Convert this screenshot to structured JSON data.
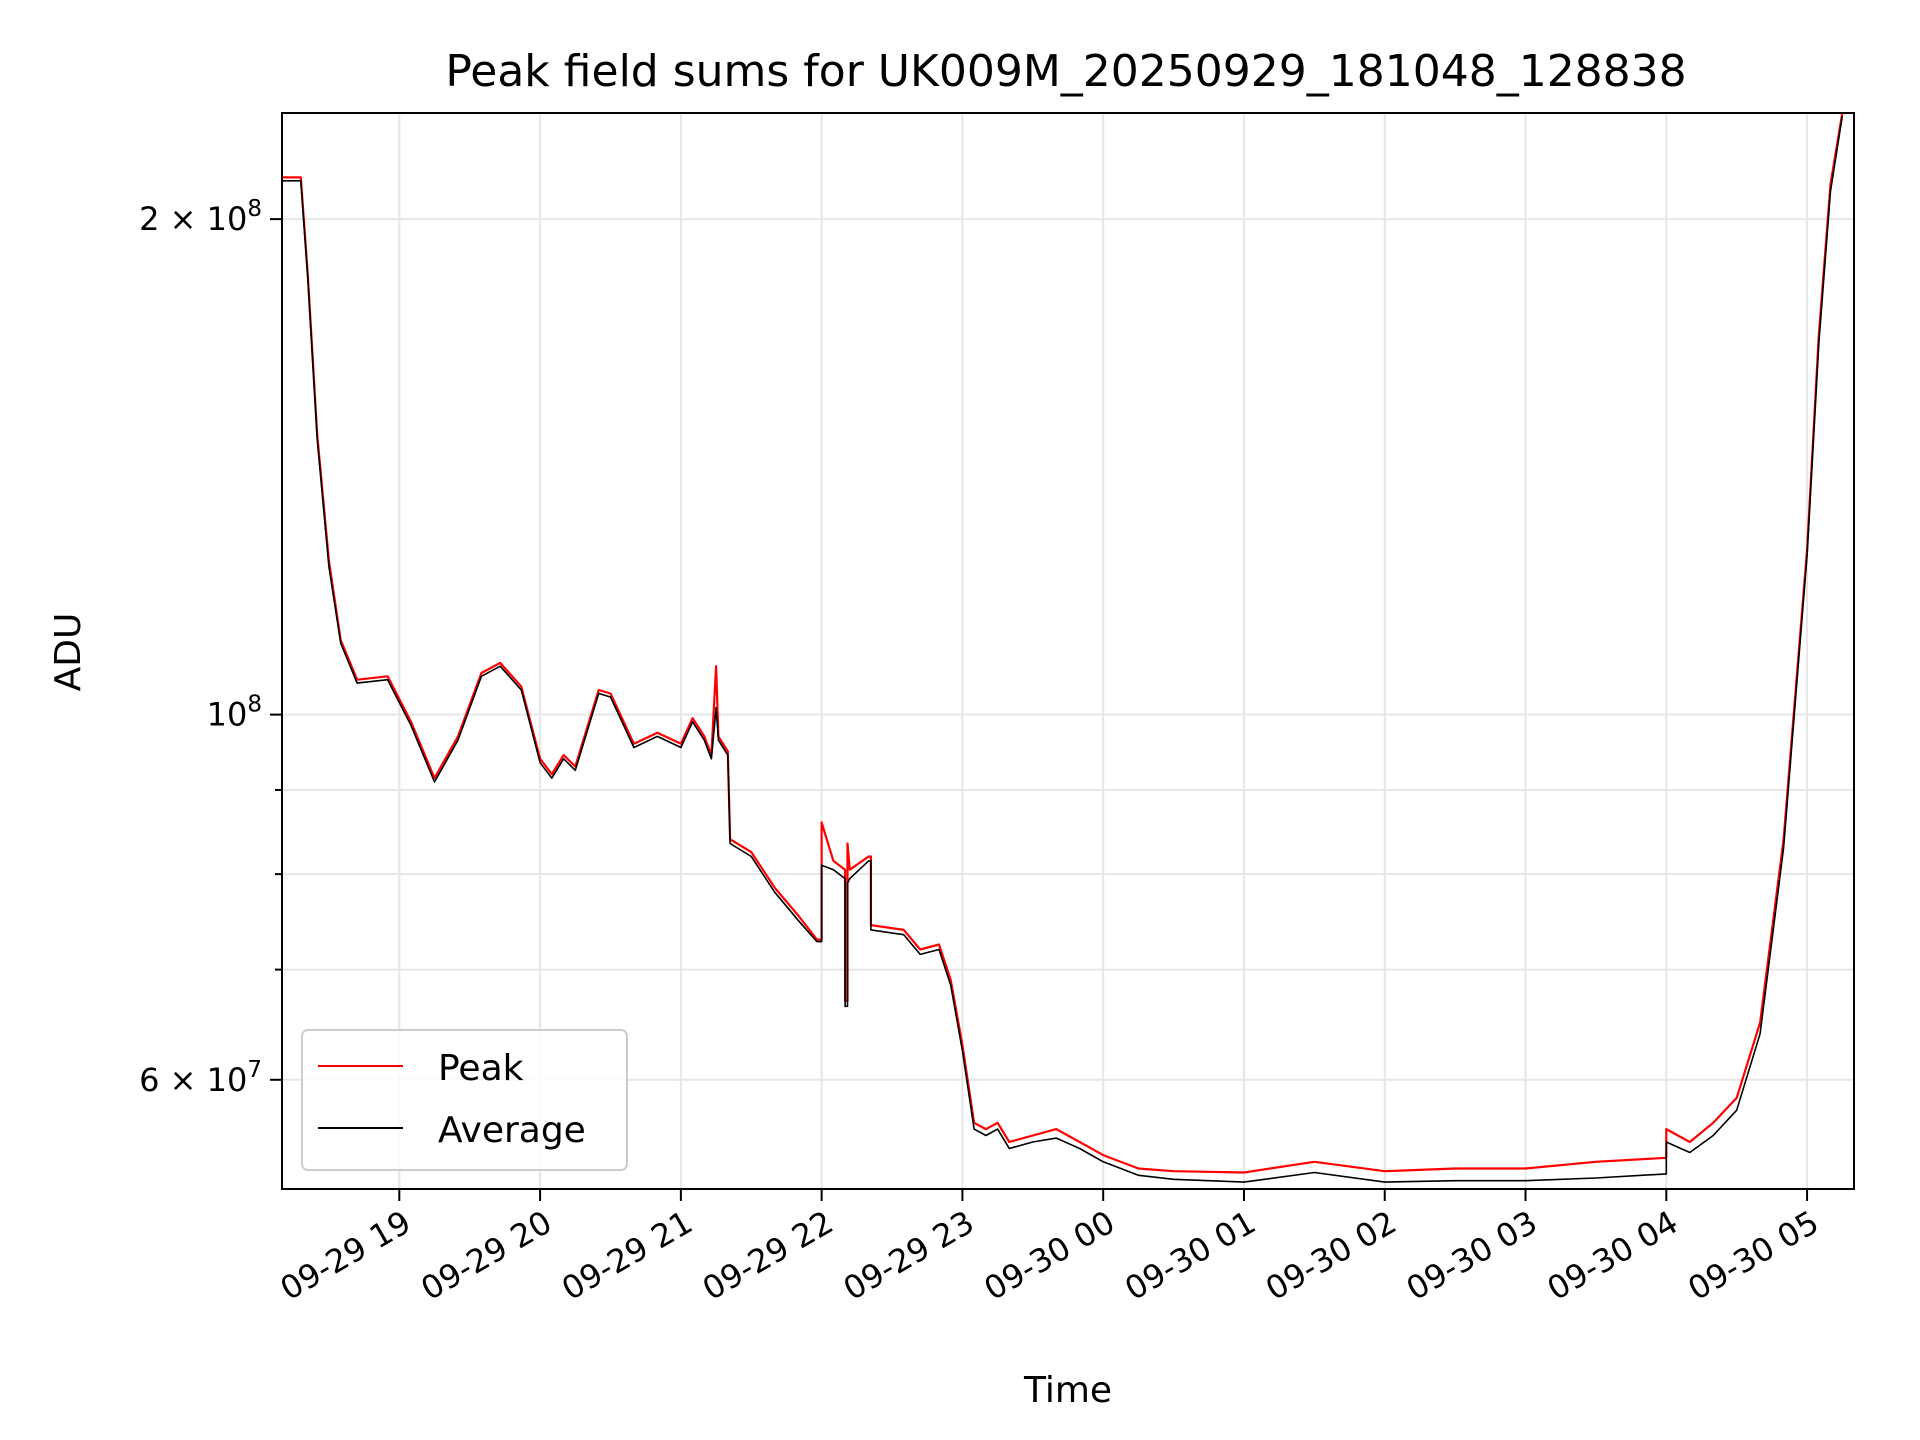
{
  "chart_data": {
    "type": "line",
    "title": "Peak field sums for UK009M_20250929_181048_128838",
    "xlabel": "Time",
    "ylabel": "ADU",
    "yscale": "log",
    "ylim": [
      51500000,
      232000000
    ],
    "xlim": [
      "2025-09-29 18:10",
      "2025-09-30 05:20"
    ],
    "grid": true,
    "legend_position": "lower-left",
    "x_ticks": [
      {
        "t": "2025-09-29 19:00",
        "label": "09-29 19"
      },
      {
        "t": "2025-09-29 20:00",
        "label": "09-29 20"
      },
      {
        "t": "2025-09-29 21:00",
        "label": "09-29 21"
      },
      {
        "t": "2025-09-29 22:00",
        "label": "09-29 22"
      },
      {
        "t": "2025-09-29 23:00",
        "label": "09-29 23"
      },
      {
        "t": "2025-09-30 00:00",
        "label": "09-30 00"
      },
      {
        "t": "2025-09-30 01:00",
        "label": "09-30 01"
      },
      {
        "t": "2025-09-30 02:00",
        "label": "09-30 02"
      },
      {
        "t": "2025-09-30 03:00",
        "label": "09-30 03"
      },
      {
        "t": "2025-09-30 04:00",
        "label": "09-30 04"
      },
      {
        "t": "2025-09-30 05:00",
        "label": "09-30 05"
      }
    ],
    "y_ticks": [
      {
        "value": 200000000,
        "base": "2 × 10",
        "exp": "8"
      },
      {
        "value": 100000000,
        "base": "10",
        "exp": "8"
      },
      {
        "value": 60000000,
        "base": "6 × 10",
        "exp": "7"
      }
    ],
    "y_minor_ticks": [
      70000000,
      80000000,
      90000000
    ],
    "series": [
      {
        "name": "Peak",
        "color": "#ff0000",
        "points": [
          [
            "2025-09-29 18:10",
            212000000
          ],
          [
            "2025-09-29 18:18",
            212000000
          ],
          [
            "2025-09-29 18:21",
            185000000
          ],
          [
            "2025-09-29 18:25",
            148000000
          ],
          [
            "2025-09-29 18:30",
            124000000
          ],
          [
            "2025-09-29 18:35",
            111000000
          ],
          [
            "2025-09-29 18:42",
            105000000
          ],
          [
            "2025-09-29 18:55",
            105500000
          ],
          [
            "2025-09-29 19:05",
            99000000
          ],
          [
            "2025-09-29 19:15",
            91500000
          ],
          [
            "2025-09-29 19:25",
            97000000
          ],
          [
            "2025-09-29 19:35",
            106000000
          ],
          [
            "2025-09-29 19:43",
            107500000
          ],
          [
            "2025-09-29 19:52",
            104000000
          ],
          [
            "2025-09-29 20:00",
            94000000
          ],
          [
            "2025-09-29 20:05",
            92000000
          ],
          [
            "2025-09-29 20:10",
            94500000
          ],
          [
            "2025-09-29 20:15",
            93000000
          ],
          [
            "2025-09-29 20:25",
            103500000
          ],
          [
            "2025-09-29 20:30",
            103000000
          ],
          [
            "2025-09-29 20:40",
            96000000
          ],
          [
            "2025-09-29 20:50",
            97500000
          ],
          [
            "2025-09-29 21:00",
            96000000
          ],
          [
            "2025-09-29 21:05",
            99500000
          ],
          [
            "2025-09-29 21:10",
            97000000
          ],
          [
            "2025-09-29 21:13",
            94500000
          ],
          [
            "2025-09-29 21:15",
            107000000
          ],
          [
            "2025-09-29 21:16",
            97000000
          ],
          [
            "2025-09-29 21:20",
            95000000
          ],
          [
            "2025-09-29 21:21",
            84000000
          ],
          [
            "2025-09-29 21:30",
            82500000
          ],
          [
            "2025-09-29 21:40",
            78500000
          ],
          [
            "2025-09-29 21:50",
            75500000
          ],
          [
            "2025-09-29 21:58",
            73000000
          ],
          [
            "2025-09-29 22:00",
            73000000
          ],
          [
            "2025-09-29 22:00",
            86000000
          ],
          [
            "2025-09-29 22:05",
            81500000
          ],
          [
            "2025-09-29 22:10",
            80500000
          ],
          [
            "2025-09-29 22:10",
            67000000
          ],
          [
            "2025-09-29 22:11",
            67000000
          ],
          [
            "2025-09-29 22:11",
            83500000
          ],
          [
            "2025-09-29 22:12",
            80500000
          ],
          [
            "2025-09-29 22:20",
            82000000
          ],
          [
            "2025-09-29 22:21",
            82000000
          ],
          [
            "2025-09-29 22:21",
            74500000
          ],
          [
            "2025-09-29 22:35",
            74000000
          ],
          [
            "2025-09-29 22:42",
            72000000
          ],
          [
            "2025-09-29 22:50",
            72500000
          ],
          [
            "2025-09-29 22:55",
            69000000
          ],
          [
            "2025-09-29 23:00",
            63000000
          ],
          [
            "2025-09-29 23:05",
            56500000
          ],
          [
            "2025-09-29 23:10",
            56000000
          ],
          [
            "2025-09-29 23:15",
            56500000
          ],
          [
            "2025-09-29 23:20",
            55000000
          ],
          [
            "2025-09-29 23:30",
            55500000
          ],
          [
            "2025-09-29 23:40",
            56000000
          ],
          [
            "2025-09-29 23:50",
            55000000
          ],
          [
            "2025-09-30 00:00",
            54000000
          ],
          [
            "2025-09-30 00:15",
            53000000
          ],
          [
            "2025-09-30 00:30",
            52800000
          ],
          [
            "2025-09-30 01:00",
            52700000
          ],
          [
            "2025-09-30 01:30",
            53500000
          ],
          [
            "2025-09-30 02:00",
            52800000
          ],
          [
            "2025-09-30 02:30",
            53000000
          ],
          [
            "2025-09-30 03:00",
            53000000
          ],
          [
            "2025-09-30 03:30",
            53500000
          ],
          [
            "2025-09-30 04:00",
            53800000
          ],
          [
            "2025-09-30 04:00",
            56000000
          ],
          [
            "2025-09-30 04:10",
            55000000
          ],
          [
            "2025-09-30 04:20",
            56500000
          ],
          [
            "2025-09-30 04:30",
            58500000
          ],
          [
            "2025-09-30 04:40",
            65000000
          ],
          [
            "2025-09-30 04:50",
            84000000
          ],
          [
            "2025-09-30 05:00",
            126000000
          ],
          [
            "2025-09-30 05:05",
            170000000
          ],
          [
            "2025-09-30 05:10",
            210000000
          ],
          [
            "2025-09-30 05:15",
            232000000
          ]
        ]
      },
      {
        "name": "Average",
        "color": "#000000",
        "points": [
          [
            "2025-09-29 18:10",
            211000000
          ],
          [
            "2025-09-29 18:18",
            211000000
          ],
          [
            "2025-09-29 18:21",
            184000000
          ],
          [
            "2025-09-29 18:25",
            147000000
          ],
          [
            "2025-09-29 18:30",
            123000000
          ],
          [
            "2025-09-29 18:35",
            110500000
          ],
          [
            "2025-09-29 18:42",
            104500000
          ],
          [
            "2025-09-29 18:55",
            105000000
          ],
          [
            "2025-09-29 19:05",
            98500000
          ],
          [
            "2025-09-29 19:15",
            91000000
          ],
          [
            "2025-09-29 19:25",
            96500000
          ],
          [
            "2025-09-29 19:35",
            105500000
          ],
          [
            "2025-09-29 19:43",
            107000000
          ],
          [
            "2025-09-29 19:52",
            103500000
          ],
          [
            "2025-09-29 20:00",
            93500000
          ],
          [
            "2025-09-29 20:05",
            91500000
          ],
          [
            "2025-09-29 20:10",
            94000000
          ],
          [
            "2025-09-29 20:15",
            92500000
          ],
          [
            "2025-09-29 20:25",
            103000000
          ],
          [
            "2025-09-29 20:30",
            102500000
          ],
          [
            "2025-09-29 20:40",
            95500000
          ],
          [
            "2025-09-29 20:50",
            97000000
          ],
          [
            "2025-09-29 21:00",
            95500000
          ],
          [
            "2025-09-29 21:05",
            99000000
          ],
          [
            "2025-09-29 21:10",
            96500000
          ],
          [
            "2025-09-29 21:13",
            94000000
          ],
          [
            "2025-09-29 21:15",
            101000000
          ],
          [
            "2025-09-29 21:16",
            96500000
          ],
          [
            "2025-09-29 21:20",
            94500000
          ],
          [
            "2025-09-29 21:21",
            83500000
          ],
          [
            "2025-09-29 21:30",
            82000000
          ],
          [
            "2025-09-29 21:40",
            78000000
          ],
          [
            "2025-09-29 21:50",
            75000000
          ],
          [
            "2025-09-29 21:58",
            72800000
          ],
          [
            "2025-09-29 22:00",
            72800000
          ],
          [
            "2025-09-29 22:00",
            81000000
          ],
          [
            "2025-09-29 22:05",
            80500000
          ],
          [
            "2025-09-29 22:10",
            79500000
          ],
          [
            "2025-09-29 22:10",
            66500000
          ],
          [
            "2025-09-29 22:11",
            66500000
          ],
          [
            "2025-09-29 22:11",
            79000000
          ],
          [
            "2025-09-29 22:12",
            79500000
          ],
          [
            "2025-09-29 22:20",
            81500000
          ],
          [
            "2025-09-29 22:21",
            81500000
          ],
          [
            "2025-09-29 22:21",
            74000000
          ],
          [
            "2025-09-29 22:35",
            73500000
          ],
          [
            "2025-09-29 22:42",
            71500000
          ],
          [
            "2025-09-29 22:50",
            72000000
          ],
          [
            "2025-09-29 22:55",
            68500000
          ],
          [
            "2025-09-29 23:00",
            62500000
          ],
          [
            "2025-09-29 23:05",
            56000000
          ],
          [
            "2025-09-29 23:10",
            55500000
          ],
          [
            "2025-09-29 23:15",
            56000000
          ],
          [
            "2025-09-29 23:20",
            54500000
          ],
          [
            "2025-09-29 23:30",
            55000000
          ],
          [
            "2025-09-29 23:40",
            55300000
          ],
          [
            "2025-09-29 23:50",
            54500000
          ],
          [
            "2025-09-30 00:00",
            53500000
          ],
          [
            "2025-09-30 00:15",
            52500000
          ],
          [
            "2025-09-30 00:30",
            52200000
          ],
          [
            "2025-09-30 01:00",
            52000000
          ],
          [
            "2025-09-30 01:30",
            52700000
          ],
          [
            "2025-09-30 02:00",
            52000000
          ],
          [
            "2025-09-30 02:30",
            52100000
          ],
          [
            "2025-09-30 03:00",
            52100000
          ],
          [
            "2025-09-30 03:30",
            52300000
          ],
          [
            "2025-09-30 04:00",
            52600000
          ],
          [
            "2025-09-30 04:00",
            55000000
          ],
          [
            "2025-09-30 04:10",
            54200000
          ],
          [
            "2025-09-30 04:20",
            55500000
          ],
          [
            "2025-09-30 04:30",
            57500000
          ],
          [
            "2025-09-30 04:40",
            64000000
          ],
          [
            "2025-09-30 04:50",
            83000000
          ],
          [
            "2025-09-30 05:00",
            125000000
          ],
          [
            "2025-09-30 05:05",
            168000000
          ],
          [
            "2025-09-30 05:10",
            208000000
          ],
          [
            "2025-09-30 05:15",
            231000000
          ]
        ]
      }
    ]
  }
}
